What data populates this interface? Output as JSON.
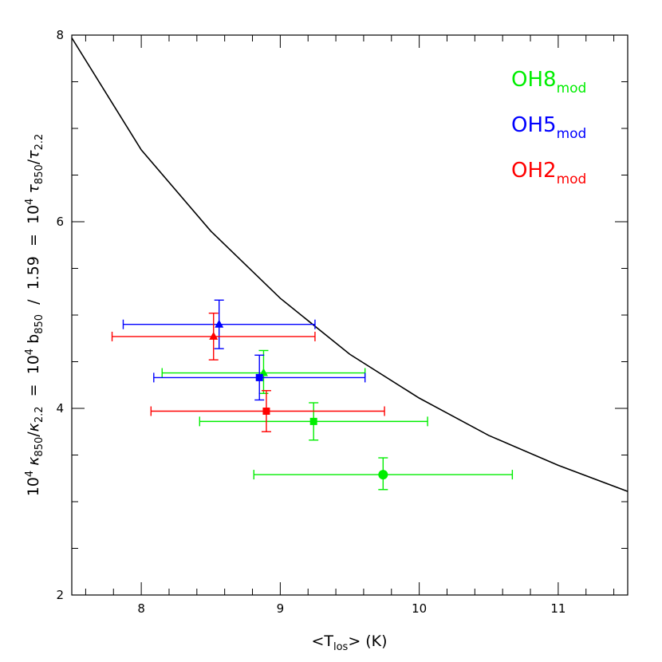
{
  "chart_data": {
    "type": "scatter",
    "title": "",
    "xlabel": {
      "pre": "<T",
      "sub": "los",
      "post": "> (K)"
    },
    "ylabel": {
      "parts": [
        {
          "t": "10",
          "k": "n"
        },
        {
          "t": "4",
          "k": "sup"
        },
        {
          "t": " ",
          "k": "n"
        },
        {
          "t": "κ",
          "k": "i"
        },
        {
          "t": "850",
          "k": "sub"
        },
        {
          "t": "/",
          "k": "n"
        },
        {
          "t": "κ",
          "k": "i"
        },
        {
          "t": "2.2",
          "k": "sub"
        },
        {
          "t": "  =  10",
          "k": "n"
        },
        {
          "t": "4",
          "k": "sup"
        },
        {
          "t": " b",
          "k": "n"
        },
        {
          "t": "850",
          "k": "sub"
        },
        {
          "t": "  /  1.59  =  10",
          "k": "n"
        },
        {
          "t": "4",
          "k": "sup"
        },
        {
          "t": " ",
          "k": "n"
        },
        {
          "t": "τ",
          "k": "i"
        },
        {
          "t": "850",
          "k": "sub"
        },
        {
          "t": "/",
          "k": "n"
        },
        {
          "t": "τ",
          "k": "i"
        },
        {
          "t": "2.2",
          "k": "sub"
        }
      ]
    },
    "xlim": [
      7.5,
      11.5
    ],
    "ylim": [
      2,
      8
    ],
    "x_ticks": [
      8,
      9,
      10,
      11
    ],
    "y_ticks": [
      2,
      4,
      6,
      8
    ],
    "x_tick_labels": [
      "8",
      "9",
      "10",
      "11"
    ],
    "y_tick_labels": [
      "2",
      "4",
      "6",
      "8"
    ],
    "grid": false,
    "legend_position": "top-right",
    "curve": {
      "color": "#000000",
      "x": [
        7.5,
        8.0,
        8.5,
        9.0,
        9.5,
        10.0,
        10.5,
        11.0,
        11.5
      ],
      "y": [
        7.97,
        6.77,
        5.9,
        5.18,
        4.58,
        4.11,
        3.71,
        3.39,
        3.11
      ]
    },
    "series": [
      {
        "name": "OH8",
        "name_sub": "mod",
        "color": "#00ee00",
        "points": [
          {
            "x": 9.74,
            "y": 3.29,
            "xerr": [
              8.81,
              10.67
            ],
            "yerr": [
              3.13,
              3.47
            ],
            "marker": "circle"
          },
          {
            "x": 9.24,
            "y": 3.86,
            "xerr": [
              8.42,
              10.06
            ],
            "yerr": [
              3.66,
              4.06
            ],
            "marker": "square"
          },
          {
            "x": 8.88,
            "y": 4.38,
            "xerr": [
              8.15,
              9.61
            ],
            "yerr": [
              4.16,
              4.62
            ],
            "marker": "triangle"
          }
        ]
      },
      {
        "name": "OH5",
        "name_sub": "mod",
        "color": "#0000ff",
        "points": [
          {
            "x": 8.56,
            "y": 4.9,
            "xerr": [
              7.87,
              9.25
            ],
            "yerr": [
              4.64,
              5.16
            ],
            "marker": "triangle"
          },
          {
            "x": 8.85,
            "y": 4.33,
            "xerr": [
              8.09,
              9.61
            ],
            "yerr": [
              4.09,
              4.57
            ],
            "marker": "square"
          }
        ]
      },
      {
        "name": "OH2",
        "name_sub": "mod",
        "color": "#ff0000",
        "points": [
          {
            "x": 8.52,
            "y": 4.77,
            "xerr": [
              7.79,
              9.25
            ],
            "yerr": [
              4.52,
              5.02
            ],
            "marker": "triangle"
          },
          {
            "x": 8.9,
            "y": 3.97,
            "xerr": [
              8.07,
              9.75
            ],
            "yerr": [
              3.75,
              4.19
            ],
            "marker": "square"
          }
        ]
      }
    ]
  }
}
